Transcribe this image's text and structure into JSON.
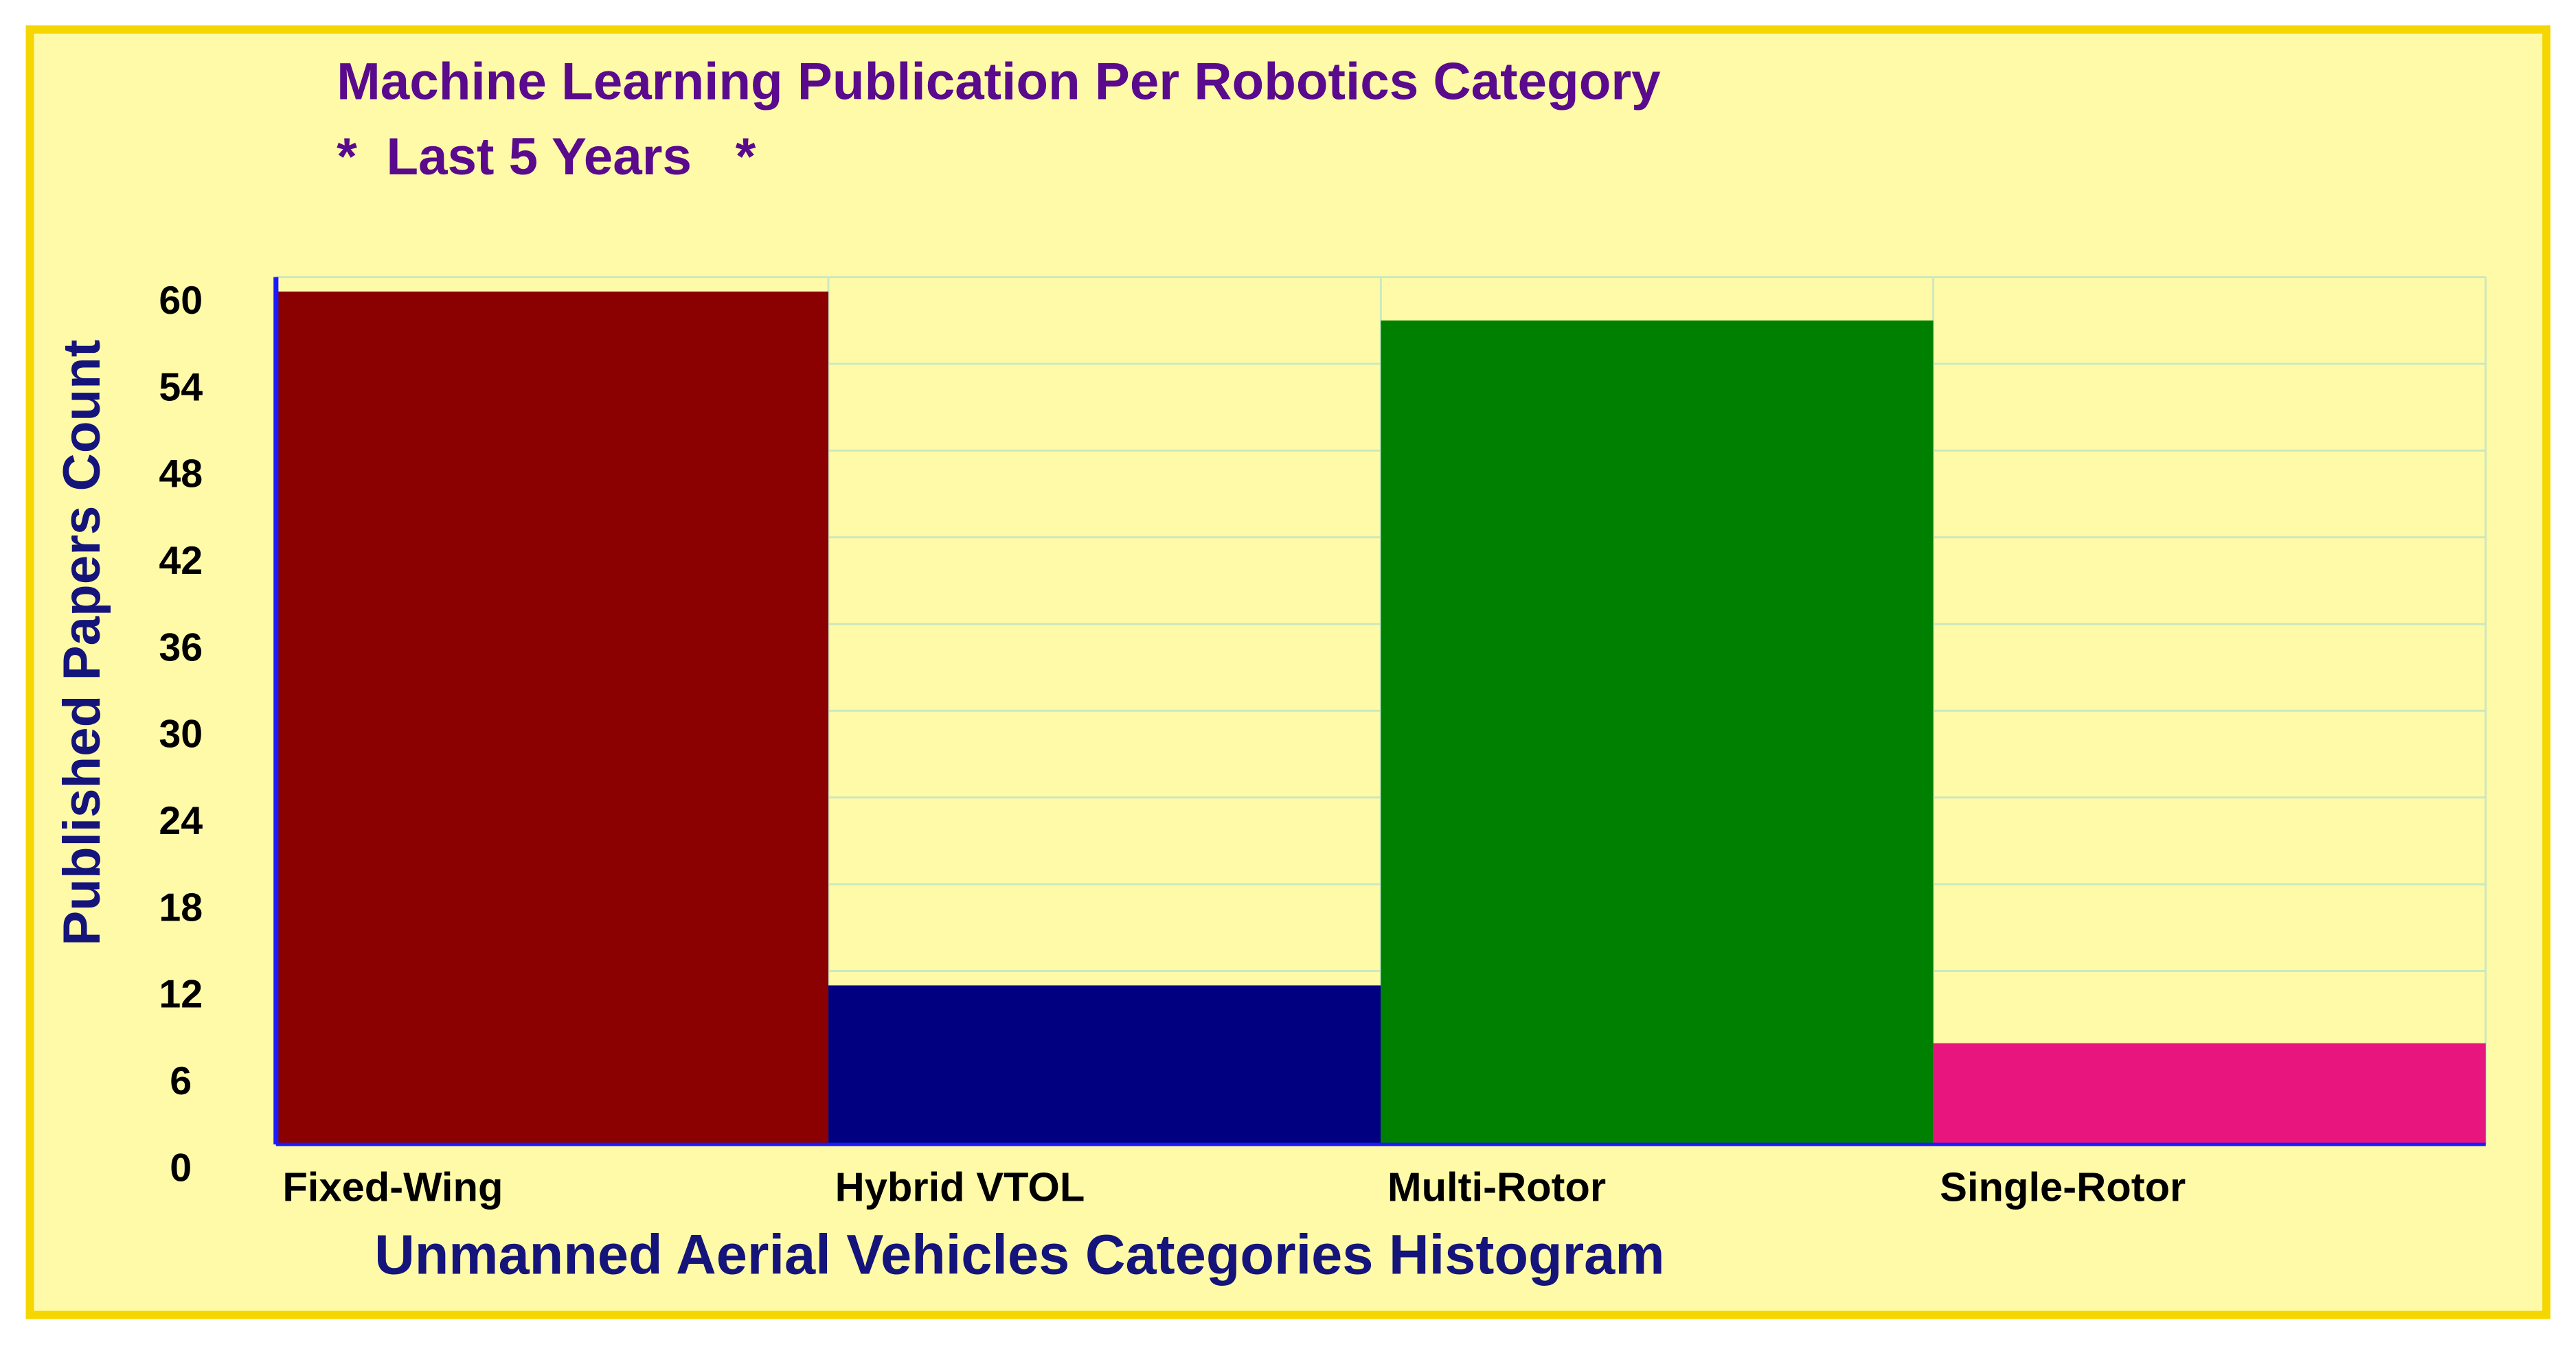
{
  "chart_data": {
    "type": "bar",
    "title": "Machine Learning Publication Per Robotics Category",
    "subtitle": "*  Last 5 Years   *",
    "x_label": "Unmanned Aerial Vehicles Categories Histogram",
    "y_label": "Published Papers Count",
    "categories": [
      "Fixed-Wing",
      "Hybrid VTOL",
      "Multi-Rotor",
      "Single-Rotor"
    ],
    "values": [
      59,
      11,
      57,
      7
    ],
    "colors": [
      "#8b0000",
      "#000080",
      "#008000",
      "#e8157f"
    ],
    "ylim": [
      0,
      60
    ],
    "yticks": [
      0,
      6,
      12,
      18,
      24,
      30,
      36,
      42,
      48,
      54,
      60
    ],
    "grid": true
  }
}
